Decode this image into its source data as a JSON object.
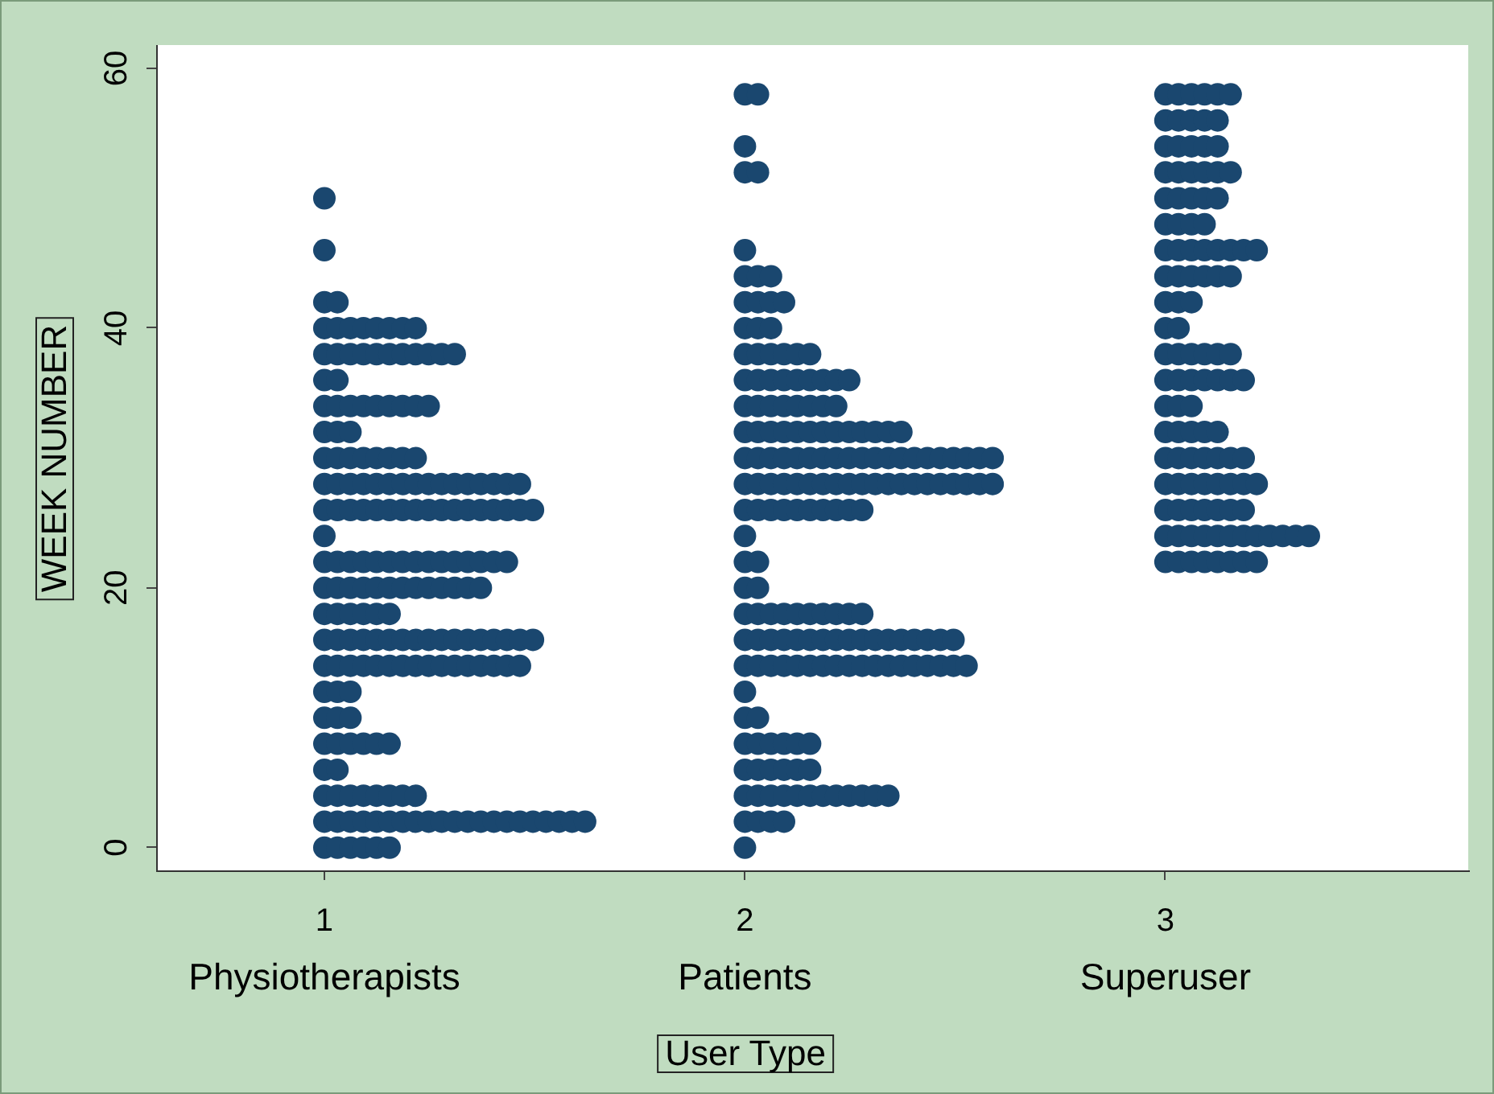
{
  "chart_data": {
    "type": "scatter",
    "xlabel": "User Type",
    "ylabel": "WEEK NUMBER",
    "xlim": [
      0.6,
      3.72
    ],
    "xticks": [
      1,
      2,
      3
    ],
    "ylim": [
      -1.75,
      61.8
    ],
    "yticks": [
      0,
      20,
      40,
      60
    ],
    "grid": false,
    "marker": "circle",
    "annotations": [
      "Physiotherapists",
      "Patients",
      "Superuser"
    ],
    "series": [
      {
        "color": "#1a476f",
        "x": [
          1,
          1.031,
          1.062,
          1.093,
          1.124,
          1.155,
          1,
          1.031,
          1.062,
          1.093,
          1.124,
          1.155,
          1.186,
          1.217,
          1.248,
          1.279,
          1.31,
          1.341,
          1.372,
          1.403,
          1.434,
          1.465,
          1.496,
          1.527,
          1.558,
          1.589,
          1.62,
          1,
          1.031,
          1.062,
          1.093,
          1.124,
          1.155,
          1.186,
          1.217,
          1,
          1.031,
          1,
          1.031,
          1.062,
          1.093,
          1.124,
          1.155,
          1,
          1.031,
          1.062,
          1,
          1.031,
          1.062,
          1,
          1.031,
          1.062,
          1.093,
          1.124,
          1.155,
          1.186,
          1.217,
          1.248,
          1.279,
          1.31,
          1.341,
          1.372,
          1.403,
          1.434,
          1.465,
          1,
          1.031,
          1.062,
          1.093,
          1.124,
          1.155,
          1.186,
          1.217,
          1.248,
          1.279,
          1.31,
          1.341,
          1.372,
          1.403,
          1.434,
          1.465,
          1.496,
          1,
          1.031,
          1.062,
          1.093,
          1.124,
          1.155,
          1,
          1.031,
          1.062,
          1.093,
          1.124,
          1.155,
          1.186,
          1.217,
          1.248,
          1.279,
          1.31,
          1.341,
          1.372,
          1,
          1.031,
          1.062,
          1.093,
          1.124,
          1.155,
          1.186,
          1.217,
          1.248,
          1.279,
          1.31,
          1.341,
          1.372,
          1.403,
          1.434,
          1,
          1,
          1.031,
          1.062,
          1.093,
          1.124,
          1.155,
          1.186,
          1.217,
          1.248,
          1.279,
          1.31,
          1.341,
          1.372,
          1.403,
          1.434,
          1.465,
          1.496,
          1,
          1.031,
          1.062,
          1.093,
          1.124,
          1.155,
          1.186,
          1.217,
          1.248,
          1.279,
          1.31,
          1.341,
          1.372,
          1.403,
          1.434,
          1.465,
          1,
          1.031,
          1.062,
          1.093,
          1.124,
          1.155,
          1.186,
          1.217,
          1,
          1.031,
          1.062,
          1,
          1.031,
          1.062,
          1.093,
          1.124,
          1.155,
          1.186,
          1.217,
          1.248,
          1,
          1.031,
          1,
          1.031,
          1.062,
          1.093,
          1.124,
          1.155,
          1.186,
          1.217,
          1.248,
          1.279,
          1.31,
          1,
          1.031,
          1.062,
          1.093,
          1.124,
          1.155,
          1.186,
          1.217,
          1,
          1.031,
          1,
          1
        ],
        "values": [
          0,
          0,
          0,
          0,
          0,
          0,
          2,
          2,
          2,
          2,
          2,
          2,
          2,
          2,
          2,
          2,
          2,
          2,
          2,
          2,
          2,
          2,
          2,
          2,
          2,
          2,
          2,
          4,
          4,
          4,
          4,
          4,
          4,
          4,
          4,
          6,
          6,
          8,
          8,
          8,
          8,
          8,
          8,
          10,
          10,
          10,
          12,
          12,
          12,
          14,
          14,
          14,
          14,
          14,
          14,
          14,
          14,
          14,
          14,
          14,
          14,
          14,
          14,
          14,
          14,
          16,
          16,
          16,
          16,
          16,
          16,
          16,
          16,
          16,
          16,
          16,
          16,
          16,
          16,
          16,
          16,
          16,
          18,
          18,
          18,
          18,
          18,
          18,
          20,
          20,
          20,
          20,
          20,
          20,
          20,
          20,
          20,
          20,
          20,
          20,
          20,
          22,
          22,
          22,
          22,
          22,
          22,
          22,
          22,
          22,
          22,
          22,
          22,
          22,
          22,
          22,
          24,
          26,
          26,
          26,
          26,
          26,
          26,
          26,
          26,
          26,
          26,
          26,
          26,
          26,
          26,
          26,
          26,
          26,
          28,
          28,
          28,
          28,
          28,
          28,
          28,
          28,
          28,
          28,
          28,
          28,
          28,
          28,
          28,
          28,
          30,
          30,
          30,
          30,
          30,
          30,
          30,
          30,
          32,
          32,
          32,
          34,
          34,
          34,
          34,
          34,
          34,
          34,
          34,
          34,
          36,
          36,
          38,
          38,
          38,
          38,
          38,
          38,
          38,
          38,
          38,
          38,
          38,
          40,
          40,
          40,
          40,
          40,
          40,
          40,
          40,
          42,
          42,
          46,
          50
        ]
      },
      {
        "color": "#1a476f",
        "x": [
          2,
          2,
          2.031,
          2.062,
          2.093,
          2,
          2.031,
          2.062,
          2.093,
          2.124,
          2.155,
          2.186,
          2.217,
          2.248,
          2.279,
          2.31,
          2.341,
          2,
          2.031,
          2.062,
          2.093,
          2.124,
          2.155,
          2,
          2.031,
          2.062,
          2.093,
          2.124,
          2.155,
          2,
          2.031,
          2,
          2,
          2.031,
          2.062,
          2.093,
          2.124,
          2.155,
          2.186,
          2.217,
          2.248,
          2.279,
          2.31,
          2.341,
          2.372,
          2.403,
          2.434,
          2.465,
          2.496,
          2.527,
          2,
          2.031,
          2.062,
          2.093,
          2.124,
          2.155,
          2.186,
          2.217,
          2.248,
          2.279,
          2.31,
          2.341,
          2.372,
          2.403,
          2.434,
          2.465,
          2.496,
          2,
          2.031,
          2.062,
          2.093,
          2.124,
          2.155,
          2.186,
          2.217,
          2.248,
          2.279,
          2,
          2.031,
          2,
          2.031,
          2,
          2,
          2.031,
          2.062,
          2.093,
          2.124,
          2.155,
          2.186,
          2.217,
          2.248,
          2.279,
          2,
          2.031,
          2.062,
          2.093,
          2.124,
          2.155,
          2.186,
          2.217,
          2.248,
          2.279,
          2.31,
          2.341,
          2.372,
          2.403,
          2.434,
          2.465,
          2.496,
          2.527,
          2.558,
          2.589,
          2,
          2.031,
          2.062,
          2.093,
          2.124,
          2.155,
          2.186,
          2.217,
          2.248,
          2.279,
          2.31,
          2.341,
          2.372,
          2.403,
          2.434,
          2.465,
          2.496,
          2.527,
          2.558,
          2.589,
          2,
          2.031,
          2.062,
          2.093,
          2.124,
          2.155,
          2.186,
          2.217,
          2.248,
          2.279,
          2.31,
          2.341,
          2.372,
          2,
          2.031,
          2.062,
          2.093,
          2.124,
          2.155,
          2.186,
          2.217,
          2,
          2.031,
          2.062,
          2.093,
          2.124,
          2.155,
          2.186,
          2.217,
          2.248,
          2,
          2.031,
          2.062,
          2.093,
          2.124,
          2.155,
          2,
          2.031,
          2.062,
          2,
          2.031,
          2.062,
          2.093,
          2,
          2.031,
          2.062,
          2,
          2,
          2.031,
          2,
          2,
          2.031
        ],
        "values": [
          0,
          2,
          2,
          2,
          2,
          4,
          4,
          4,
          4,
          4,
          4,
          4,
          4,
          4,
          4,
          4,
          4,
          6,
          6,
          6,
          6,
          6,
          6,
          8,
          8,
          8,
          8,
          8,
          8,
          10,
          10,
          12,
          14,
          14,
          14,
          14,
          14,
          14,
          14,
          14,
          14,
          14,
          14,
          14,
          14,
          14,
          14,
          14,
          14,
          14,
          16,
          16,
          16,
          16,
          16,
          16,
          16,
          16,
          16,
          16,
          16,
          16,
          16,
          16,
          16,
          16,
          16,
          18,
          18,
          18,
          18,
          18,
          18,
          18,
          18,
          18,
          18,
          20,
          20,
          22,
          22,
          24,
          26,
          26,
          26,
          26,
          26,
          26,
          26,
          26,
          26,
          26,
          28,
          28,
          28,
          28,
          28,
          28,
          28,
          28,
          28,
          28,
          28,
          28,
          28,
          28,
          28,
          28,
          28,
          28,
          28,
          28,
          30,
          30,
          30,
          30,
          30,
          30,
          30,
          30,
          30,
          30,
          30,
          30,
          30,
          30,
          30,
          30,
          30,
          30,
          30,
          30,
          32,
          32,
          32,
          32,
          32,
          32,
          32,
          32,
          32,
          32,
          32,
          32,
          32,
          34,
          34,
          34,
          34,
          34,
          34,
          34,
          34,
          36,
          36,
          36,
          36,
          36,
          36,
          36,
          36,
          36,
          38,
          38,
          38,
          38,
          38,
          38,
          40,
          40,
          40,
          42,
          42,
          42,
          42,
          44,
          44,
          44,
          46,
          52,
          52,
          54,
          58,
          58
        ]
      },
      {
        "color": "#1a476f",
        "x": [
          3,
          3.031,
          3.062,
          3.093,
          3.124,
          3.155,
          3.186,
          3.217,
          3,
          3.031,
          3.062,
          3.093,
          3.124,
          3.155,
          3.186,
          3.217,
          3.248,
          3.279,
          3.31,
          3.341,
          3,
          3.031,
          3.062,
          3.093,
          3.124,
          3.155,
          3.186,
          3,
          3.031,
          3.062,
          3.093,
          3.124,
          3.155,
          3.186,
          3.217,
          3,
          3.031,
          3.062,
          3.093,
          3.124,
          3.155,
          3.186,
          3,
          3.031,
          3.062,
          3.093,
          3.124,
          3,
          3.031,
          3.062,
          3,
          3.031,
          3.062,
          3.093,
          3.124,
          3.155,
          3.186,
          3,
          3.031,
          3.062,
          3.093,
          3.124,
          3.155,
          3,
          3.031,
          3,
          3.031,
          3.062,
          3,
          3.031,
          3.062,
          3.093,
          3.124,
          3.155,
          3,
          3.031,
          3.062,
          3.093,
          3.124,
          3.155,
          3.186,
          3.217,
          3,
          3.031,
          3.062,
          3.093,
          3,
          3.031,
          3.062,
          3.093,
          3.124,
          3,
          3.031,
          3.062,
          3.093,
          3.124,
          3.155,
          3,
          3.031,
          3.062,
          3.093,
          3.124,
          3,
          3.031,
          3.062,
          3.093,
          3.124,
          3,
          3.031,
          3.062,
          3.093,
          3.124,
          3.155
        ],
        "values": [
          22,
          22,
          22,
          22,
          22,
          22,
          22,
          22,
          24,
          24,
          24,
          24,
          24,
          24,
          24,
          24,
          24,
          24,
          24,
          24,
          26,
          26,
          26,
          26,
          26,
          26,
          26,
          28,
          28,
          28,
          28,
          28,
          28,
          28,
          28,
          30,
          30,
          30,
          30,
          30,
          30,
          30,
          32,
          32,
          32,
          32,
          32,
          34,
          34,
          34,
          36,
          36,
          36,
          36,
          36,
          36,
          36,
          38,
          38,
          38,
          38,
          38,
          38,
          40,
          40,
          42,
          42,
          42,
          44,
          44,
          44,
          44,
          44,
          44,
          46,
          46,
          46,
          46,
          46,
          46,
          46,
          46,
          48,
          48,
          48,
          48,
          50,
          50,
          50,
          50,
          50,
          52,
          52,
          52,
          52,
          52,
          52,
          54,
          54,
          54,
          54,
          54,
          56,
          56,
          56,
          56,
          56,
          58,
          58,
          58,
          58,
          58,
          58
        ]
      }
    ]
  }
}
